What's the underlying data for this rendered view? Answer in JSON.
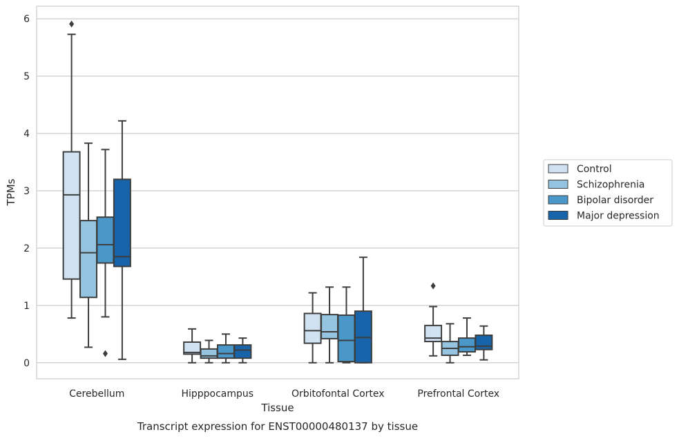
{
  "chart_data": {
    "type": "boxplot",
    "title": "",
    "caption": "Transcript expression for ENST00000480137 by tissue",
    "xlabel": "Tissue",
    "ylabel": "TPMs",
    "ylim": [
      -0.28,
      6.22
    ],
    "yticks": [
      0,
      1,
      2,
      3,
      4,
      5,
      6
    ],
    "ytick_labels": [
      "0",
      "1",
      "2",
      "3",
      "4",
      "5",
      "6"
    ],
    "grid": "horizontal",
    "legend_position": "right",
    "categories": [
      "Cerebellum",
      "Hipppocampus",
      "Orbitofontal Cortex",
      "Prefrontal Cortex"
    ],
    "series": [
      {
        "name": "Control",
        "color": "#d0e1f2",
        "boxes": [
          {
            "whislo": 0.78,
            "q1": 1.46,
            "med": 2.93,
            "q3": 3.68,
            "whishi": 5.73,
            "fliers": [
              5.91
            ]
          },
          {
            "whislo": 0.0,
            "q1": 0.15,
            "med": 0.18,
            "q3": 0.36,
            "whishi": 0.59,
            "fliers": []
          },
          {
            "whislo": 0.0,
            "q1": 0.34,
            "med": 0.56,
            "q3": 0.86,
            "whishi": 1.22,
            "fliers": []
          },
          {
            "whislo": 0.12,
            "q1": 0.37,
            "med": 0.43,
            "q3": 0.65,
            "whishi": 0.98,
            "fliers": [
              1.34
            ]
          }
        ]
      },
      {
        "name": "Schizophrenia",
        "color": "#94c4df",
        "boxes": [
          {
            "whislo": 0.27,
            "q1": 1.14,
            "med": 1.92,
            "q3": 2.48,
            "whishi": 3.83,
            "fliers": []
          },
          {
            "whislo": 0.0,
            "q1": 0.08,
            "med": 0.12,
            "q3": 0.24,
            "whishi": 0.39,
            "fliers": []
          },
          {
            "whislo": 0.0,
            "q1": 0.42,
            "med": 0.54,
            "q3": 0.84,
            "whishi": 1.32,
            "fliers": []
          },
          {
            "whislo": 0.0,
            "q1": 0.13,
            "med": 0.25,
            "q3": 0.37,
            "whishi": 0.68,
            "fliers": []
          }
        ]
      },
      {
        "name": "Bipolar disorder",
        "color": "#4a98c9",
        "boxes": [
          {
            "whislo": 0.8,
            "q1": 1.74,
            "med": 2.06,
            "q3": 2.54,
            "whishi": 3.72,
            "fliers": [
              0.16
            ]
          },
          {
            "whislo": 0.0,
            "q1": 0.08,
            "med": 0.16,
            "q3": 0.31,
            "whishi": 0.5,
            "fliers": []
          },
          {
            "whislo": 0.0,
            "q1": 0.02,
            "med": 0.39,
            "q3": 0.83,
            "whishi": 1.32,
            "fliers": []
          },
          {
            "whislo": 0.13,
            "q1": 0.19,
            "med": 0.28,
            "q3": 0.43,
            "whishi": 0.78,
            "fliers": []
          }
        ]
      },
      {
        "name": "Major depression",
        "color": "#1764ab",
        "boxes": [
          {
            "whislo": 0.06,
            "q1": 1.68,
            "med": 1.85,
            "q3": 3.2,
            "whishi": 4.22,
            "fliers": []
          },
          {
            "whislo": 0.0,
            "q1": 0.08,
            "med": 0.22,
            "q3": 0.31,
            "whishi": 0.43,
            "fliers": []
          },
          {
            "whislo": 0.0,
            "q1": 0.0,
            "med": 0.44,
            "q3": 0.9,
            "whishi": 1.84,
            "fliers": []
          },
          {
            "whislo": 0.05,
            "q1": 0.23,
            "med": 0.29,
            "q3": 0.48,
            "whishi": 0.64,
            "fliers": []
          }
        ]
      }
    ]
  }
}
